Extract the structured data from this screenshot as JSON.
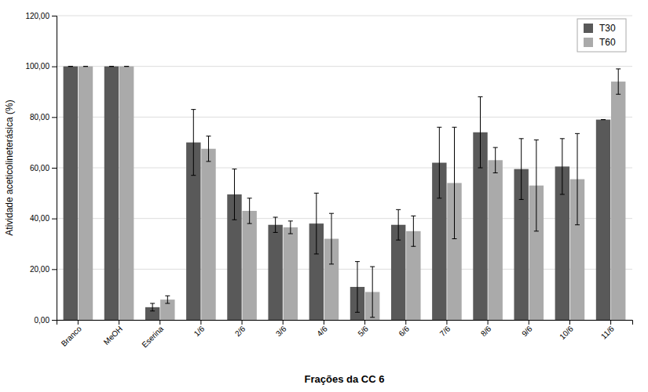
{
  "chart_data": {
    "type": "bar",
    "categories": [
      "Branco",
      "MeOH",
      "Eserina",
      "1/6",
      "2/6",
      "3/6",
      "4/6",
      "5/6",
      "6/6",
      "7/6",
      "8/6",
      "9/6",
      "10/6",
      "11/6"
    ],
    "series": [
      {
        "name": "T30",
        "color": "#595959",
        "values": [
          100.0,
          100.0,
          5.0,
          70.0,
          49.5,
          37.5,
          38.0,
          13.0,
          37.5,
          62.0,
          74.0,
          59.5,
          60.5,
          79.0
        ],
        "errors": [
          0.0,
          0.0,
          1.5,
          13.0,
          10.0,
          3.0,
          12.0,
          10.0,
          6.0,
          14.0,
          14.0,
          12.0,
          11.0,
          0.0
        ]
      },
      {
        "name": "T60",
        "color": "#aaaaaa",
        "values": [
          100.0,
          100.0,
          8.0,
          67.5,
          43.0,
          36.5,
          32.0,
          11.0,
          35.0,
          54.0,
          63.0,
          53.0,
          55.5,
          94.0
        ],
        "errors": [
          0.0,
          0.0,
          1.5,
          5.0,
          5.0,
          2.5,
          10.0,
          10.0,
          6.0,
          22.0,
          5.0,
          18.0,
          18.0,
          5.0
        ]
      }
    ],
    "xlabel": "Frações da CC 6",
    "ylabel": "Atividade aceticolineterásica (%)",
    "ylim": [
      0,
      120
    ],
    "yticks": [
      {
        "value": 0,
        "label": "0,00"
      },
      {
        "value": 20,
        "label": "20,00"
      },
      {
        "value": 40,
        "label": "40,00"
      },
      {
        "value": 60,
        "label": "60,00"
      },
      {
        "value": 80,
        "label": "80,00"
      },
      {
        "value": 100,
        "label": "100,00"
      },
      {
        "value": 120,
        "label": "120,00"
      }
    ],
    "grid": true,
    "legend": "upper right"
  }
}
